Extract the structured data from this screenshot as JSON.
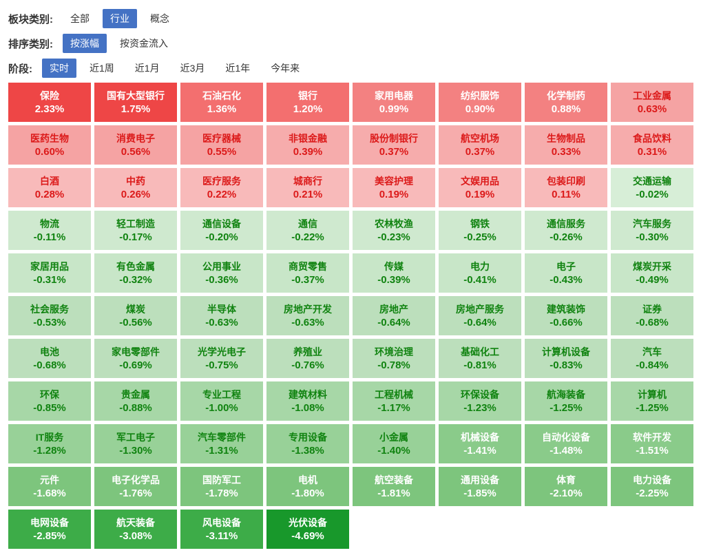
{
  "filters": [
    {
      "key": "sector-category",
      "label": "板块类别:",
      "options": [
        {
          "label": "全部",
          "selected": false
        },
        {
          "label": "行业",
          "selected": true
        },
        {
          "label": "概念",
          "selected": false
        }
      ]
    },
    {
      "key": "sort-category",
      "label": "排序类别:",
      "options": [
        {
          "label": "按涨幅",
          "selected": true
        },
        {
          "label": "按资金流入",
          "selected": false
        }
      ]
    },
    {
      "key": "period",
      "label": "阶段:",
      "options": [
        {
          "label": "实时",
          "selected": true
        },
        {
          "label": "近1周",
          "selected": false
        },
        {
          "label": "近1月",
          "selected": false
        },
        {
          "label": "近3月",
          "selected": false
        },
        {
          "label": "近1年",
          "selected": false
        },
        {
          "label": "今年来",
          "selected": false
        }
      ]
    }
  ],
  "colors": {
    "accent_blue": "#4472c4",
    "up_text": "#dc1a1a",
    "down_text": "#108310",
    "white_text": "#ffffff",
    "label_text": "#333333"
  },
  "color_scale": [
    {
      "min": 1.5,
      "bg": "#ee4646",
      "fg": "#ffffff"
    },
    {
      "min": 1.1,
      "bg": "#f36f6f",
      "fg": "#ffffff"
    },
    {
      "min": 0.75,
      "bg": "#f38181",
      "fg": "#ffffff"
    },
    {
      "min": 0.5,
      "bg": "#f5a3a3",
      "fg": "#dc1a1a"
    },
    {
      "min": 0.3,
      "bg": "#f6acac",
      "fg": "#dc1a1a"
    },
    {
      "min": 0.05,
      "bg": "#f8baba",
      "fg": "#dc1a1a"
    },
    {
      "min": -0.055,
      "bg": "#d7eed7",
      "fg": "#108310"
    },
    {
      "min": -0.305,
      "bg": "#cfe9cf",
      "fg": "#108310"
    },
    {
      "min": -0.52,
      "bg": "#c8e6c8",
      "fg": "#108310"
    },
    {
      "min": -0.845,
      "bg": "#bcdfbc",
      "fg": "#108310"
    },
    {
      "min": -1.27,
      "bg": "#a7d7a7",
      "fg": "#108310"
    },
    {
      "min": -1.405,
      "bg": "#98d198",
      "fg": "#108310"
    },
    {
      "min": -1.6,
      "bg": "#8acb8a",
      "fg": "#ffffff"
    },
    {
      "min": -2.5,
      "bg": "#7dc57d",
      "fg": "#ffffff"
    },
    {
      "min": -3.5,
      "bg": "#3dac48",
      "fg": "#ffffff"
    },
    {
      "min": -999,
      "bg": "#18982b",
      "fg": "#ffffff"
    }
  ],
  "chart_data": {
    "type": "heatmap",
    "metric": "涨跌幅",
    "unit": "%",
    "columns": 8,
    "tiles": [
      {
        "name": "保险",
        "value": 2.33,
        "text": "2.33%"
      },
      {
        "name": "国有大型银行",
        "value": 1.75,
        "text": "1.75%"
      },
      {
        "name": "石油石化",
        "value": 1.36,
        "text": "1.36%"
      },
      {
        "name": "银行",
        "value": 1.2,
        "text": "1.20%"
      },
      {
        "name": "家用电器",
        "value": 0.99,
        "text": "0.99%"
      },
      {
        "name": "纺织服饰",
        "value": 0.9,
        "text": "0.90%"
      },
      {
        "name": "化学制药",
        "value": 0.88,
        "text": "0.88%"
      },
      {
        "name": "工业金属",
        "value": 0.63,
        "text": "0.63%"
      },
      {
        "name": "医药生物",
        "value": 0.6,
        "text": "0.60%"
      },
      {
        "name": "消费电子",
        "value": 0.56,
        "text": "0.56%"
      },
      {
        "name": "医疗器械",
        "value": 0.55,
        "text": "0.55%"
      },
      {
        "name": "非银金融",
        "value": 0.39,
        "text": "0.39%"
      },
      {
        "name": "股份制银行",
        "value": 0.37,
        "text": "0.37%"
      },
      {
        "name": "航空机场",
        "value": 0.37,
        "text": "0.37%"
      },
      {
        "name": "生物制品",
        "value": 0.33,
        "text": "0.33%"
      },
      {
        "name": "食品饮料",
        "value": 0.31,
        "text": "0.31%"
      },
      {
        "name": "白酒",
        "value": 0.28,
        "text": "0.28%"
      },
      {
        "name": "中药",
        "value": 0.26,
        "text": "0.26%"
      },
      {
        "name": "医疗服务",
        "value": 0.22,
        "text": "0.22%"
      },
      {
        "name": "城商行",
        "value": 0.21,
        "text": "0.21%"
      },
      {
        "name": "美容护理",
        "value": 0.19,
        "text": "0.19%"
      },
      {
        "name": "文娱用品",
        "value": 0.19,
        "text": "0.19%"
      },
      {
        "name": "包装印刷",
        "value": 0.11,
        "text": "0.11%"
      },
      {
        "name": "交通运输",
        "value": -0.02,
        "text": "-0.02%"
      },
      {
        "name": "物流",
        "value": -0.11,
        "text": "-0.11%"
      },
      {
        "name": "轻工制造",
        "value": -0.17,
        "text": "-0.17%"
      },
      {
        "name": "通信设备",
        "value": -0.2,
        "text": "-0.20%"
      },
      {
        "name": "通信",
        "value": -0.22,
        "text": "-0.22%"
      },
      {
        "name": "农林牧渔",
        "value": -0.23,
        "text": "-0.23%"
      },
      {
        "name": "钢铁",
        "value": -0.25,
        "text": "-0.25%"
      },
      {
        "name": "通信服务",
        "value": -0.26,
        "text": "-0.26%"
      },
      {
        "name": "汽车服务",
        "value": -0.3,
        "text": "-0.30%"
      },
      {
        "name": "家居用品",
        "value": -0.31,
        "text": "-0.31%"
      },
      {
        "name": "有色金属",
        "value": -0.32,
        "text": "-0.32%"
      },
      {
        "name": "公用事业",
        "value": -0.36,
        "text": "-0.36%"
      },
      {
        "name": "商贸零售",
        "value": -0.37,
        "text": "-0.37%"
      },
      {
        "name": "传媒",
        "value": -0.39,
        "text": "-0.39%"
      },
      {
        "name": "电力",
        "value": -0.41,
        "text": "-0.41%"
      },
      {
        "name": "电子",
        "value": -0.43,
        "text": "-0.43%"
      },
      {
        "name": "煤炭开采",
        "value": -0.49,
        "text": "-0.49%"
      },
      {
        "name": "社会服务",
        "value": -0.53,
        "text": "-0.53%"
      },
      {
        "name": "煤炭",
        "value": -0.56,
        "text": "-0.56%"
      },
      {
        "name": "半导体",
        "value": -0.63,
        "text": "-0.63%"
      },
      {
        "name": "房地产开发",
        "value": -0.63,
        "text": "-0.63%"
      },
      {
        "name": "房地产",
        "value": -0.64,
        "text": "-0.64%"
      },
      {
        "name": "房地产服务",
        "value": -0.64,
        "text": "-0.64%"
      },
      {
        "name": "建筑装饰",
        "value": -0.66,
        "text": "-0.66%"
      },
      {
        "name": "证券",
        "value": -0.68,
        "text": "-0.68%"
      },
      {
        "name": "电池",
        "value": -0.68,
        "text": "-0.68%"
      },
      {
        "name": "家电零部件",
        "value": -0.69,
        "text": "-0.69%"
      },
      {
        "name": "光学光电子",
        "value": -0.75,
        "text": "-0.75%"
      },
      {
        "name": "养殖业",
        "value": -0.76,
        "text": "-0.76%"
      },
      {
        "name": "环境治理",
        "value": -0.78,
        "text": "-0.78%"
      },
      {
        "name": "基础化工",
        "value": -0.81,
        "text": "-0.81%"
      },
      {
        "name": "计算机设备",
        "value": -0.83,
        "text": "-0.83%"
      },
      {
        "name": "汽车",
        "value": -0.84,
        "text": "-0.84%"
      },
      {
        "name": "环保",
        "value": -0.85,
        "text": "-0.85%"
      },
      {
        "name": "贵金属",
        "value": -0.88,
        "text": "-0.88%"
      },
      {
        "name": "专业工程",
        "value": -1.0,
        "text": "-1.00%"
      },
      {
        "name": "建筑材料",
        "value": -1.08,
        "text": "-1.08%"
      },
      {
        "name": "工程机械",
        "value": -1.17,
        "text": "-1.17%"
      },
      {
        "name": "环保设备",
        "value": -1.23,
        "text": "-1.23%"
      },
      {
        "name": "航海装备",
        "value": -1.25,
        "text": "-1.25%"
      },
      {
        "name": "计算机",
        "value": -1.25,
        "text": "-1.25%"
      },
      {
        "name": "IT服务",
        "value": -1.28,
        "text": "-1.28%"
      },
      {
        "name": "军工电子",
        "value": -1.3,
        "text": "-1.30%"
      },
      {
        "name": "汽车零部件",
        "value": -1.31,
        "text": "-1.31%"
      },
      {
        "name": "专用设备",
        "value": -1.38,
        "text": "-1.38%"
      },
      {
        "name": "小金属",
        "value": -1.4,
        "text": "-1.40%"
      },
      {
        "name": "机械设备",
        "value": -1.41,
        "text": "-1.41%"
      },
      {
        "name": "自动化设备",
        "value": -1.48,
        "text": "-1.48%"
      },
      {
        "name": "软件开发",
        "value": -1.51,
        "text": "-1.51%"
      },
      {
        "name": "元件",
        "value": -1.68,
        "text": "-1.68%"
      },
      {
        "name": "电子化学品",
        "value": -1.76,
        "text": "-1.76%"
      },
      {
        "name": "国防军工",
        "value": -1.78,
        "text": "-1.78%"
      },
      {
        "name": "电机",
        "value": -1.8,
        "text": "-1.80%"
      },
      {
        "name": "航空装备",
        "value": -1.81,
        "text": "-1.81%"
      },
      {
        "name": "通用设备",
        "value": -1.85,
        "text": "-1.85%"
      },
      {
        "name": "体育",
        "value": -2.1,
        "text": "-2.10%"
      },
      {
        "name": "电力设备",
        "value": -2.25,
        "text": "-2.25%"
      },
      {
        "name": "电网设备",
        "value": -2.85,
        "text": "-2.85%"
      },
      {
        "name": "航天装备",
        "value": -3.08,
        "text": "-3.08%"
      },
      {
        "name": "风电设备",
        "value": -3.11,
        "text": "-3.11%"
      },
      {
        "name": "光伏设备",
        "value": -4.69,
        "text": "-4.69%"
      }
    ]
  }
}
